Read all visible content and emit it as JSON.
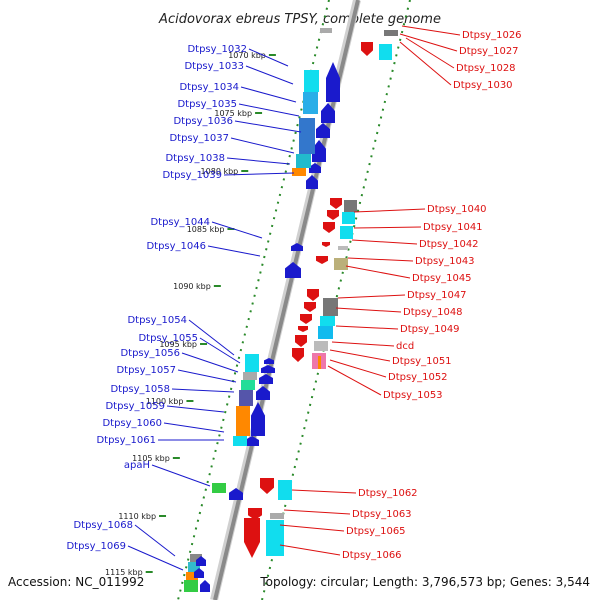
{
  "title": "Acidovorax ebreus TPSY, complete genome",
  "footer": {
    "accession": "Accession: NC_011992",
    "summary": "Topology: circular; Length: 3,796,573 bp; Genes: 3,544"
  },
  "colors": {
    "forward": "#1a1acc",
    "reverse": "#dd1111",
    "backbone": "#8a8a8a",
    "tick": "#2a8a2a"
  },
  "ticks": [
    "1070 kbp",
    "1075 kbp",
    "1080 kbp",
    "1085 kbp",
    "1090 kbp",
    "1095 kbp",
    "1100 kbp",
    "1105 kbp",
    "1110 kbp",
    "1115 kbp"
  ],
  "genes_left": [
    "Dtpsy_1032",
    "Dtpsy_1033",
    "Dtpsy_1034",
    "Dtpsy_1035",
    "Dtpsy_1036",
    "Dtpsy_1037",
    "Dtpsy_1038",
    "Dtpsy_1039",
    "Dtpsy_1044",
    "Dtpsy_1046",
    "Dtpsy_1054",
    "Dtpsy_1055",
    "Dtpsy_1056",
    "Dtpsy_1057",
    "Dtpsy_1058",
    "Dtpsy_1059",
    "Dtpsy_1060",
    "Dtpsy_1061",
    "apaH",
    "Dtpsy_1068",
    "Dtpsy_1069"
  ],
  "genes_right": [
    "Dtpsy_1026",
    "Dtpsy_1027",
    "Dtpsy_1028",
    "Dtpsy_1030",
    "Dtpsy_1040",
    "Dtpsy_1041",
    "Dtpsy_1042",
    "Dtpsy_1043",
    "Dtpsy_1045",
    "Dtpsy_1047",
    "Dtpsy_1048",
    "Dtpsy_1049",
    "dcd",
    "Dtpsy_1051",
    "Dtpsy_1052",
    "Dtpsy_1053",
    "Dtpsy_1062",
    "Dtpsy_1063",
    "Dtpsy_1065",
    "Dtpsy_1066"
  ]
}
